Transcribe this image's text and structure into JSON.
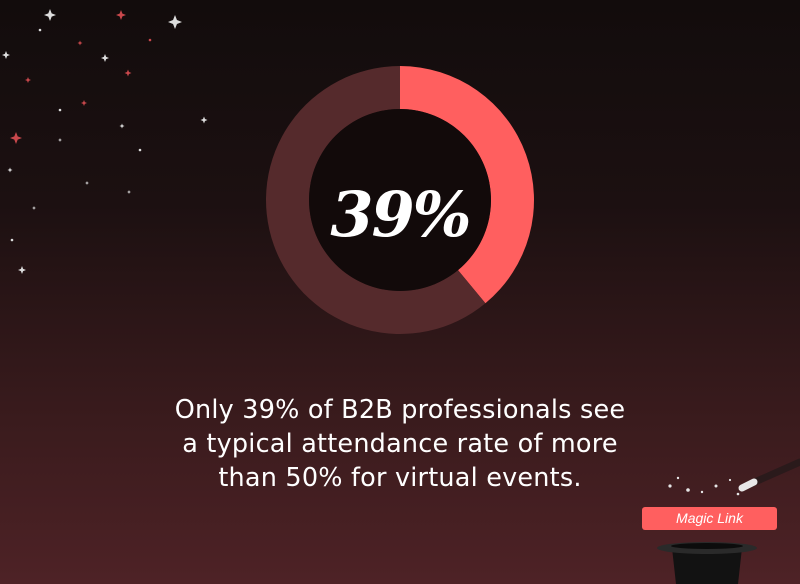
{
  "colors": {
    "accent": "#ff5f5f",
    "track": "#552a2c",
    "hole": "#120a0a",
    "text": "#ffffff",
    "sparkle_white": "#dddddd",
    "sparkle_red": "#c9484c"
  },
  "chart_data": {
    "type": "pie",
    "variant": "donut",
    "slices": [
      {
        "value": 39,
        "color": "#ff5f5f"
      },
      {
        "value": 61,
        "color": "#552a2c"
      }
    ],
    "center_label": "39%"
  },
  "caption": {
    "line1": "Only 39% of B2B professionals see",
    "line2": "a typical attendance rate of more",
    "line3": "than 50% for virtual events."
  },
  "badge": {
    "label": "Magic Link"
  },
  "icons": {
    "decoration": "sparkles-icon",
    "magic_hat": "magic-hat-icon",
    "wand": "magic-wand-icon"
  }
}
